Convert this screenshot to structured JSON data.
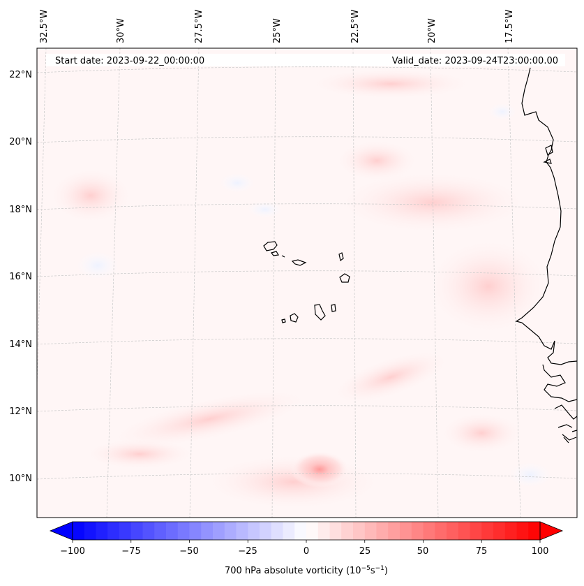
{
  "header": {
    "start_date": "Start date: 2023-09-22_00:00:00",
    "valid_date": "Valid_date: 2023-09-24T23:00:00.00"
  },
  "lon_labels": [
    "32.5°W",
    "30°W",
    "27.5°W",
    "25°W",
    "22.5°W",
    "20°W",
    "17.5°W"
  ],
  "lat_labels": [
    "22°N",
    "20°N",
    "18°N",
    "16°N",
    "14°N",
    "12°N",
    "10°N"
  ],
  "colorbar": {
    "ticks": [
      "−100",
      "−75",
      "−50",
      "−25",
      "0",
      "25",
      "50",
      "75",
      "100"
    ],
    "label": "700 hPa absolute vorticity (10",
    "label_exp1": "−5",
    "label_mid": "s",
    "label_exp2": "−1",
    "label_end": ")",
    "min": -100,
    "max": 100,
    "levels": 40,
    "colors": {
      "low": "#0000ff",
      "mid": "#ffffff",
      "high": "#ff0000"
    }
  },
  "colors": {
    "land_outline": "#000000",
    "grid": "#c8c8c8",
    "field_bg": "#fff6f6"
  }
}
